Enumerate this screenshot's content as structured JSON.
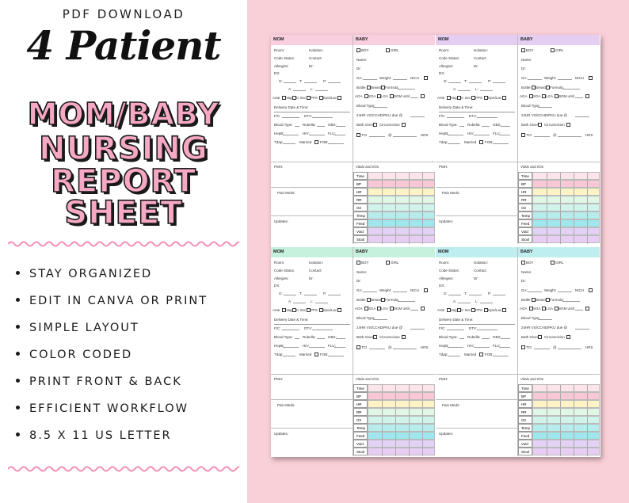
{
  "header": {
    "subtitle": "PDF DOWNLOAD",
    "script_title": "4 Patient"
  },
  "title_lines": [
    "MOM/BABY",
    "NURSING",
    "REPORT",
    "SHEET"
  ],
  "features": [
    "STAY ORGANIZED",
    "EDIT IN CANVA OR PRINT",
    "SIMPLE LAYOUT",
    "COLOR CODED",
    "PRINT FRONT & BACK",
    "EFFICIENT WORKFLOW",
    "8.5 X 11 US LETTER"
  ],
  "colors": {
    "background_right": "#f9cfd8",
    "title_pink": "#f7a8c4",
    "mom_headers": [
      "#f9cfe0",
      "#e6cdf2",
      "#c6f1dc",
      "#bfeef0"
    ],
    "row_colors": [
      "#fbe4ea",
      "#f9c7d6",
      "#fdf3c4",
      "#dff7e4",
      "#d0f3ec",
      "#b7ecec",
      "#9fe6ef",
      "#e3d1f6",
      "#e8cdf4"
    ]
  },
  "sheet": {
    "mom": {
      "header": "MOM",
      "fields": [
        "Room:",
        "Isolation:",
        "Code Status:",
        "Contact:",
        "Allergies:",
        "Dr:",
        "DX:",
        "G:",
        "T:",
        "P:",
        "A:",
        "L:",
        "Ante",
        "Vag",
        "C Sec",
        "PPS",
        "Epis/Lac",
        "Delivery Date & Time:",
        "F/C:",
        "DTV:",
        "Blood Type:",
        "Rubella:",
        "GBS:",
        "HepB:",
        "HIV:",
        "FLU:",
        "Tdap:",
        "Married",
        "FOB:"
      ],
      "pmh": "PMH:",
      "pain_meds": "Pain Meds:",
      "updates": "Updates:"
    },
    "baby": {
      "header": "BABY",
      "fields": [
        "BOY",
        "GIRL",
        "Name:",
        "Dr:",
        "GA:",
        "Weight:",
        "NICU",
        "Bottle",
        "Breast",
        "Formula:",
        "AGA",
        "SGA",
        "LGA",
        "BGM until",
        "Blood Type:",
        "24HR VS/CCHD/PKU due @",
        "Bath Given",
        "Circumcision",
        "TCI",
        "@",
        "HRS"
      ],
      "vitals_title": "Vitals and I/Os",
      "vitals_rows": [
        "Time",
        "BP",
        "HR",
        "RR",
        "O2",
        "Temp",
        "Feed",
        "Void",
        "Stool"
      ]
    }
  }
}
